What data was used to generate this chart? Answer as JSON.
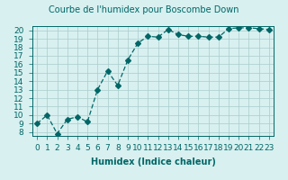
{
  "x": [
    0,
    1,
    2,
    3,
    4,
    5,
    6,
    7,
    8,
    9,
    10,
    11,
    12,
    13,
    14,
    15,
    16,
    17,
    18,
    19,
    20,
    21,
    22,
    23
  ],
  "y": [
    9.0,
    10.0,
    7.8,
    9.5,
    9.8,
    9.2,
    13.0,
    15.2,
    13.5,
    16.5,
    18.5,
    19.3,
    19.2,
    20.1,
    19.5,
    19.3,
    19.3,
    19.2,
    19.2,
    20.2,
    20.3,
    20.3,
    20.2,
    20.1
  ],
  "line_color": "#006666",
  "marker": "D",
  "marker_size": 3,
  "bg_color": "#d8f0f0",
  "grid_color": "#aacccc",
  "title": "Courbe de l'humidex pour Boscombe Down",
  "xlabel": "Humidex (Indice chaleur)",
  "ylabel": "",
  "xlim": [
    -0.5,
    23.5
  ],
  "ylim": [
    7.5,
    20.5
  ],
  "yticks": [
    8,
    9,
    10,
    11,
    12,
    13,
    14,
    15,
    16,
    17,
    18,
    19,
    20
  ],
  "xticks": [
    0,
    1,
    2,
    3,
    4,
    5,
    6,
    7,
    8,
    9,
    10,
    11,
    12,
    13,
    14,
    15,
    16,
    17,
    18,
    19,
    20,
    21,
    22,
    23
  ],
  "title_fontsize": 7,
  "label_fontsize": 7,
  "tick_fontsize": 6.5
}
